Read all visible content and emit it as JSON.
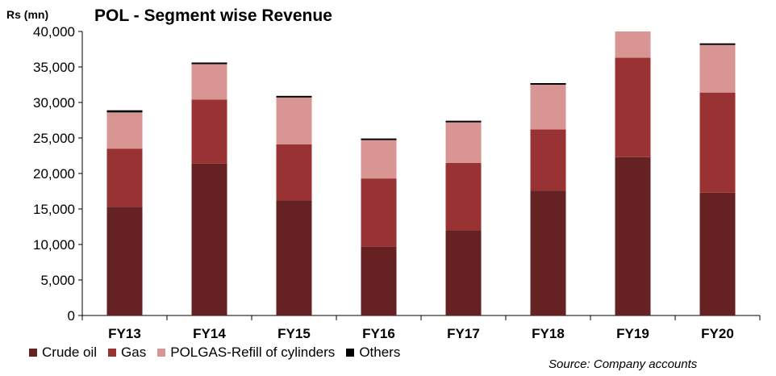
{
  "chart_data": {
    "type": "bar",
    "stacked": true,
    "title": "POL - Segment wise Revenue",
    "ylabel": "Rs (mn)",
    "xlabel": "",
    "ylim": [
      0,
      40000
    ],
    "yticks": [
      0,
      5000,
      10000,
      15000,
      20000,
      25000,
      30000,
      35000,
      40000
    ],
    "ytick_labels": [
      "0",
      "5,000",
      "10,000",
      "15,000",
      "20,000",
      "25,000",
      "30,000",
      "35,000",
      "40,000"
    ],
    "grid": false,
    "legend_position": "bottom-left",
    "categories": [
      "FY13",
      "FY14",
      "FY15",
      "FY16",
      "FY17",
      "FY18",
      "FY19",
      "FY20"
    ],
    "series": [
      {
        "name": "Crude oil",
        "color": "#662222",
        "values": [
          15300,
          21400,
          16200,
          9700,
          12000,
          17600,
          22300,
          17300
        ]
      },
      {
        "name": "Gas",
        "color": "#993333",
        "values": [
          8200,
          9000,
          7900,
          9600,
          9500,
          8600,
          14000,
          14100
        ]
      },
      {
        "name": "POLGAS-Refill of cylinders",
        "color": "#d99594",
        "values": [
          5100,
          5000,
          6600,
          5400,
          5700,
          6300,
          3700,
          6700
        ]
      },
      {
        "name": "Others",
        "color": "#000000",
        "values": [
          300,
          100,
          200,
          200,
          100,
          200,
          0,
          200
        ]
      }
    ],
    "source": "Source: Company accounts"
  }
}
